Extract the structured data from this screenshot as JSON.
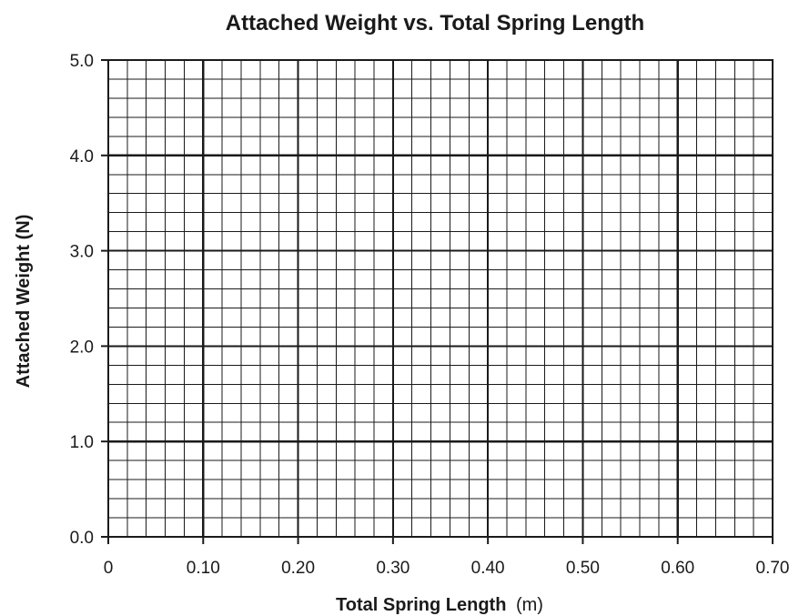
{
  "chart_data": {
    "type": "scatter",
    "title": "Attached Weight vs. Total Spring Length",
    "xlabel": "Total Spring Length",
    "xlabel_unit": "(m)",
    "ylabel": "Attached Weight (N)",
    "xlim": [
      0,
      0.7
    ],
    "ylim": [
      0,
      5.0
    ],
    "x_ticks": [
      0,
      0.1,
      0.2,
      0.3,
      0.4,
      0.5,
      0.6,
      0.7
    ],
    "x_tick_labels": [
      "0",
      "0.10",
      "0.20",
      "0.30",
      "0.40",
      "0.50",
      "0.60",
      "0.70"
    ],
    "y_ticks": [
      0,
      1,
      2,
      3,
      4,
      5
    ],
    "y_tick_labels": [
      "0.0",
      "1.0",
      "2.0",
      "3.0",
      "4.0",
      "5.0"
    ],
    "grid": true,
    "minor_divisions_per_major_x": 5,
    "minor_divisions_per_major_y": 5,
    "series": []
  },
  "colors": {
    "grid": "#1a1a1a",
    "text": "#1a1a1a",
    "background": "#ffffff"
  }
}
